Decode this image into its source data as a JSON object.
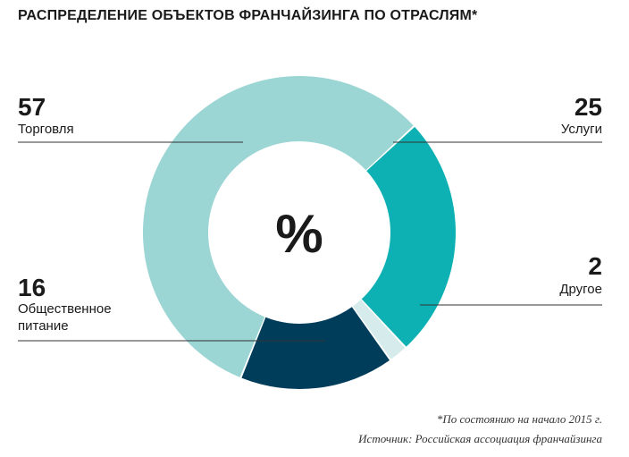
{
  "chart_data": {
    "type": "pie",
    "title": "РАСПРЕДЕЛЕНИЕ ОБЪЕКТОВ ФРАНЧАЙЗИНГА ПО ОТРАСЛЯМ*",
    "center_label": "%",
    "slices": [
      {
        "name": "Торговля",
        "name_lines": [
          "Торговля"
        ],
        "value": 57,
        "color": "#9bd5d4"
      },
      {
        "name": "Услуги",
        "name_lines": [
          "Услуги"
        ],
        "value": 25,
        "color": "#0db0b3"
      },
      {
        "name": "Другое",
        "name_lines": [
          "Другое"
        ],
        "value": 2,
        "color": "#d6ecec"
      },
      {
        "name": "Общественное питание",
        "name_lines": [
          "Общественное",
          "питание"
        ],
        "value": 16,
        "color": "#003d5b"
      }
    ],
    "footnote": "*По состоянию на начало 2015 г.",
    "source": "Источник: Российская ассоциация франчайзинга"
  }
}
